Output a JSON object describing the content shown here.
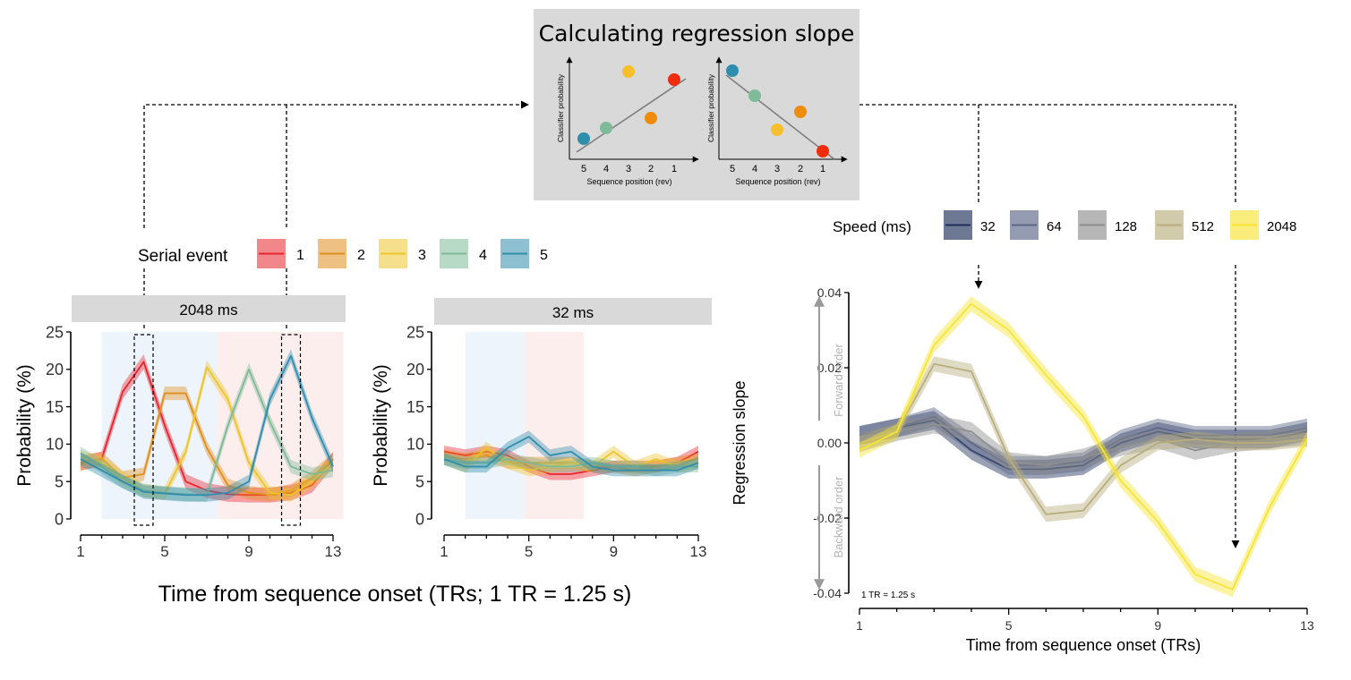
{
  "colors": {
    "serial": [
      "#e8242c",
      "#e08e1c",
      "#ecc42c",
      "#7fba99",
      "#2f8ead"
    ],
    "speed": [
      "#1f2f5a",
      "#5c6688",
      "#8f8f8f",
      "#b8ad7d",
      "#f7e436"
    ],
    "forward_shade": "#eef4fc",
    "backward_shade": "#fdeeee",
    "strip": "#d9d9d9",
    "top_box": "#d9d9d9",
    "example_points": [
      "#2f8ead",
      "#7fba99",
      "#f5c02c",
      "#f08c0c",
      "#f02c0c"
    ]
  },
  "top_box": {
    "title": "Calculating regression slope",
    "ylabel": "Classifier probability",
    "xlabel": "Sequence position (rev)",
    "ticks": [
      "5",
      "4",
      "3",
      "2",
      "1"
    ]
  },
  "serial_legend": {
    "title": "Serial event",
    "labels": [
      "1",
      "2",
      "3",
      "4",
      "5"
    ]
  },
  "speed_legend": {
    "title": "Speed (ms)",
    "labels": [
      "32",
      "64",
      "128",
      "512",
      "2048"
    ]
  },
  "shared_xlabel": "Time from sequence onset (TRs; 1 TR = 1.25 s)",
  "chart_data": [
    {
      "type": "line",
      "title": "2048 ms",
      "ylabel": "Probability (%)",
      "xlabel": "",
      "x": [
        1,
        2,
        3,
        4,
        5,
        6,
        7,
        8,
        9,
        10,
        11,
        12,
        13
      ],
      "xticks": [
        1,
        5,
        9,
        13
      ],
      "ylim": [
        0,
        25
      ],
      "yticks": [
        0,
        5,
        10,
        15,
        20,
        25
      ],
      "forward_shade_x": [
        2,
        7.5
      ],
      "backward_shade_x": [
        7.5,
        13.5
      ],
      "highlight_x": [
        4,
        11
      ],
      "series": [
        {
          "name": "1",
          "values": [
            7.5,
            8.0,
            17.0,
            21.0,
            12.5,
            5.0,
            3.8,
            3.3,
            3.2,
            3.2,
            3.5,
            4.5,
            8.0
          ],
          "band": 1.0
        },
        {
          "name": "2",
          "values": [
            7.3,
            8.1,
            5.5,
            6.0,
            16.8,
            16.8,
            9.5,
            4.5,
            3.5,
            3.2,
            3.8,
            5.5,
            8.0
          ],
          "band": 0.9
        },
        {
          "name": "3",
          "values": [
            8.3,
            7.5,
            5.5,
            3.8,
            3.4,
            9.0,
            20.3,
            16.0,
            7.5,
            3.5,
            3.2,
            5.0,
            7.5
          ],
          "band": 0.9
        },
        {
          "name": "4",
          "values": [
            8.8,
            7.0,
            5.0,
            3.8,
            3.5,
            3.3,
            3.2,
            12.5,
            20.0,
            13.0,
            7.0,
            6.0,
            6.5
          ],
          "band": 0.9
        },
        {
          "name": "5",
          "values": [
            8.0,
            6.5,
            5.0,
            3.6,
            3.4,
            3.2,
            3.2,
            3.5,
            5.0,
            16.0,
            21.8,
            13.5,
            7.0
          ],
          "band": 0.9
        }
      ]
    },
    {
      "type": "line",
      "title": "32 ms",
      "ylabel": "Probability (%)",
      "xlabel": "",
      "x": [
        1,
        2,
        3,
        4,
        5,
        6,
        7,
        8,
        9,
        10,
        11,
        12,
        13
      ],
      "xticks": [
        1,
        5,
        9,
        13
      ],
      "ylim": [
        0,
        25
      ],
      "yticks": [
        0,
        5,
        10,
        15,
        20,
        25
      ],
      "forward_shade_x": [
        2,
        4.8
      ],
      "backward_shade_x": [
        4.8,
        7.6
      ],
      "series": [
        {
          "name": "1",
          "values": [
            9.0,
            8.5,
            9.0,
            8.5,
            7.0,
            6.0,
            6.0,
            6.5,
            7.0,
            7.0,
            7.0,
            7.5,
            9.0
          ],
          "band": 0.8
        },
        {
          "name": "2",
          "values": [
            8.5,
            8.0,
            8.5,
            7.5,
            7.5,
            7.5,
            7.5,
            7.0,
            7.0,
            6.5,
            7.0,
            7.5,
            8.0
          ],
          "band": 0.8
        },
        {
          "name": "3",
          "values": [
            8.0,
            7.0,
            9.5,
            7.5,
            6.5,
            7.0,
            7.5,
            7.0,
            9.0,
            7.0,
            8.0,
            7.0,
            7.5
          ],
          "band": 0.8
        },
        {
          "name": "4",
          "values": [
            8.0,
            7.5,
            7.5,
            8.0,
            7.5,
            7.0,
            7.0,
            7.5,
            7.0,
            7.0,
            6.5,
            7.0,
            7.0
          ],
          "band": 0.8
        },
        {
          "name": "5",
          "values": [
            8.0,
            7.0,
            7.0,
            9.5,
            11.0,
            8.5,
            9.0,
            7.0,
            6.5,
            6.5,
            6.5,
            6.5,
            7.5
          ],
          "band": 0.8
        }
      ]
    },
    {
      "type": "line",
      "title": "",
      "ylabel": "Regression slope",
      "xlabel": "Time from sequence onset (TRs)",
      "x": [
        1,
        2,
        3,
        4,
        5,
        6,
        7,
        8,
        9,
        10,
        11,
        12,
        13
      ],
      "xticks": [
        1,
        5,
        9,
        13
      ],
      "ylim": [
        -0.04,
        0.04
      ],
      "yticks": [
        -0.04,
        -0.02,
        0.0,
        0.02,
        0.04
      ],
      "ytick_labels": [
        "-0.04",
        "-0.02",
        "0.00",
        "0.02",
        "0.04"
      ],
      "forward_label": "Forward order",
      "backward_label": "Backward order",
      "annotation": "1 TR = 1.25 s",
      "arrows_x": [
        4,
        11
      ],
      "series": [
        {
          "name": "32",
          "values": [
            0.002,
            0.004,
            0.006,
            -0.002,
            -0.007,
            -0.007,
            -0.006,
            0.0,
            0.003,
            0.001,
            0.001,
            0.001,
            0.003
          ],
          "band": 0.0025
        },
        {
          "name": "64",
          "values": [
            0.002,
            0.004,
            0.007,
            0.0,
            -0.006,
            -0.006,
            -0.005,
            0.001,
            0.004,
            0.002,
            0.002,
            0.002,
            0.004
          ],
          "band": 0.0025
        },
        {
          "name": "128",
          "values": [
            0.0,
            0.003,
            0.005,
            0.003,
            -0.005,
            -0.006,
            -0.004,
            -0.001,
            0.001,
            -0.002,
            0.0,
            0.001,
            0.002
          ],
          "band": 0.0025
        },
        {
          "name": "512",
          "values": [
            0.0,
            0.003,
            0.021,
            0.019,
            -0.004,
            -0.019,
            -0.018,
            -0.006,
            0.0,
            0.001,
            0.0,
            0.0,
            0.001
          ],
          "band": 0.002
        },
        {
          "name": "2048",
          "values": [
            -0.002,
            0.003,
            0.026,
            0.037,
            0.03,
            0.018,
            0.007,
            -0.01,
            -0.021,
            -0.035,
            -0.039,
            -0.017,
            0.001
          ],
          "band": 0.002
        }
      ]
    }
  ]
}
